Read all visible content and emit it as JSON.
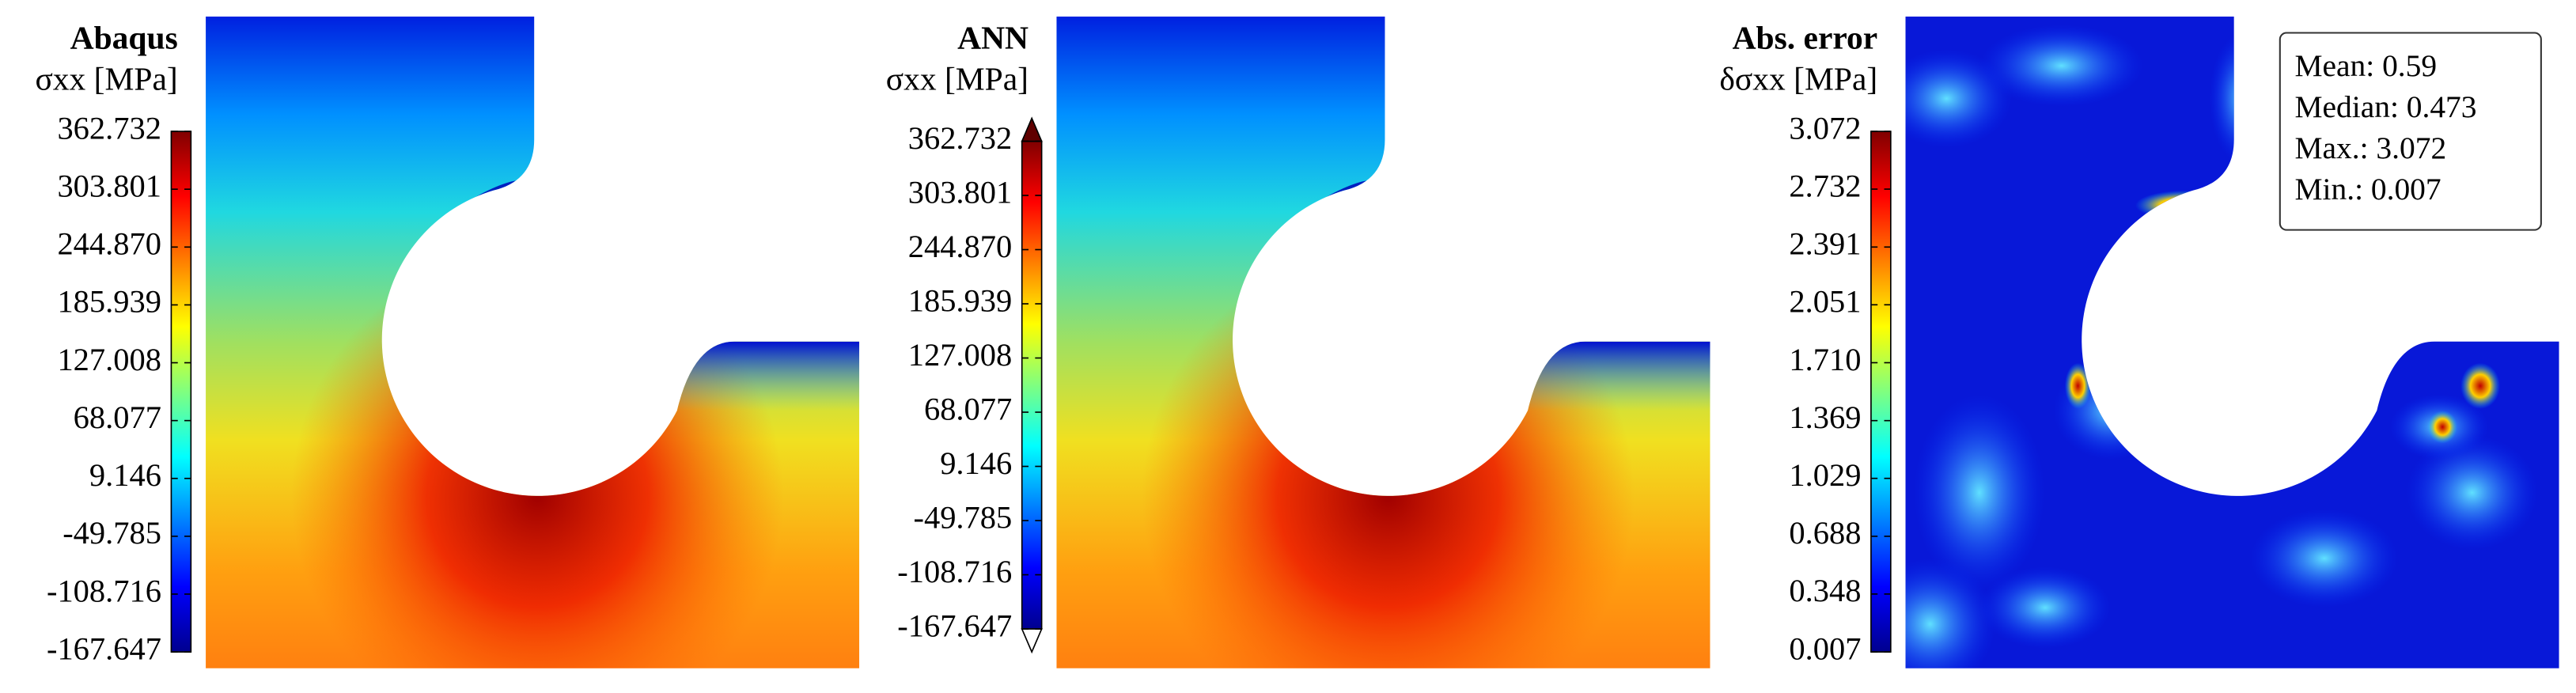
{
  "chart_data": [
    {
      "type": "contour",
      "title": "Abaqus",
      "label": "σxx [MPa]",
      "colormap": "jet",
      "clim": [
        -167.647,
        362.732
      ],
      "cticks": [
        -167.647,
        -108.716,
        -49.785,
        9.146,
        68.077,
        127.008,
        185.939,
        {
          "value": 244.87,
          "label": "244.870"
        },
        303.801,
        362.732
      ]
    },
    {
      "type": "contour",
      "title": "ANN",
      "label": "σxx [MPa]",
      "colormap": "jet",
      "extend": "both",
      "clim": [
        -167.647,
        362.732
      ],
      "cticks": [
        -167.647,
        -108.716,
        -49.785,
        9.146,
        68.077,
        127.008,
        185.939,
        {
          "value": 244.87,
          "label": "244.870"
        },
        303.801,
        362.732
      ]
    },
    {
      "type": "contour",
      "title": "Abs. error",
      "label": "δσxx [MPa]",
      "colormap": "jet",
      "clim": [
        0.007,
        3.072
      ],
      "cticks": [
        0.007,
        0.348,
        0.688,
        1.029,
        1.369,
        {
          "value": 1.71,
          "label": "1.710"
        },
        2.051,
        2.391,
        2.732,
        3.072
      ],
      "annotations": [
        "Mean: 0.59",
        "Median: 0.473",
        "Max.: 3.072",
        "Min.: 0.007"
      ]
    }
  ]
}
